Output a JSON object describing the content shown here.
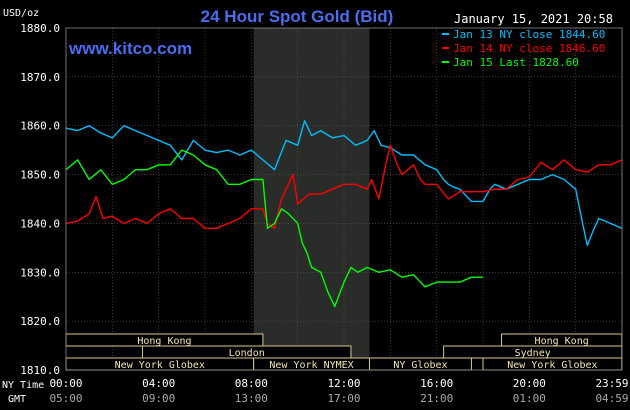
{
  "chart_data": {
    "type": "line",
    "title": "24 Hour Spot Gold (Bid)",
    "website": "www.kitco.com",
    "timestamp": "January 15, 2021 20:58",
    "unit_label": "USD/oz",
    "ylim": [
      1810,
      1880
    ],
    "y_ticks": [
      "1880.0",
      "1870.0",
      "1860.0",
      "1850.0",
      "1840.0",
      "1830.0",
      "1820.0",
      "1810.0"
    ],
    "x_time_labels": [
      "00:00",
      "04:00",
      "08:00",
      "12:00",
      "16:00",
      "20:00",
      "23:59"
    ],
    "gmt_time_labels": [
      "05:00",
      "09:00",
      "13:00",
      "17:00",
      "21:00",
      "01:00",
      "04:59"
    ],
    "ny_time_label": "NY Time",
    "gmt_label": "GMT",
    "shade_hours": [
      8.1,
      13.1
    ],
    "colors": {
      "background": "#000000",
      "title": "#4a6cf0",
      "jan13": "#00bfff",
      "jan14": "#ff0000",
      "jan15": "#00ff00",
      "grid": "#5a5a5a",
      "shade": "#2a2c2a"
    },
    "legend": [
      {
        "label": "Jan 13 NY close 1844.60",
        "color": "#00bfff"
      },
      {
        "label": "Jan 14 NY close 1846.60",
        "color": "#ff0000"
      },
      {
        "label": "Jan 15 Last 1828.60",
        "color": "#00ff00"
      }
    ],
    "sessions": [
      {
        "label": "Hong Kong",
        "row": 0,
        "start": 0,
        "end": 8.5
      },
      {
        "label": "Hong Kong",
        "row": 0,
        "start": 18.8,
        "end": 23.99
      },
      {
        "label": "London",
        "row": 1,
        "start": 3.3,
        "end": 12.3
      },
      {
        "label": "Sydney",
        "row": 1,
        "start": 16.3,
        "end": 23.99
      },
      {
        "label": "New York Globex",
        "row": 2,
        "start": 0,
        "end": 8.1
      },
      {
        "label": "New York NYMEX",
        "row": 2,
        "start": 8.1,
        "end": 13.1
      },
      {
        "label": "NY Globex",
        "row": 2,
        "start": 13.1,
        "end": 17.5
      },
      {
        "label": "New York Globex",
        "row": 2,
        "start": 18.0,
        "end": 23.99
      }
    ],
    "series": [
      {
        "name": "Jan 13 NY close 1844.60",
        "color": "#00bfff",
        "points": [
          [
            0,
            1859.5
          ],
          [
            0.5,
            1859
          ],
          [
            1,
            1860
          ],
          [
            1.5,
            1858.5
          ],
          [
            2,
            1857.5
          ],
          [
            2.5,
            1860
          ],
          [
            3,
            1859
          ],
          [
            3.5,
            1858
          ],
          [
            4,
            1857
          ],
          [
            4.5,
            1856
          ],
          [
            5,
            1853
          ],
          [
            5.5,
            1857
          ],
          [
            6,
            1855
          ],
          [
            6.5,
            1854.5
          ],
          [
            7,
            1855
          ],
          [
            7.5,
            1854
          ],
          [
            8,
            1855
          ],
          [
            8.5,
            1853
          ],
          [
            9,
            1851
          ],
          [
            9.5,
            1857
          ],
          [
            10,
            1856
          ],
          [
            10.3,
            1861
          ],
          [
            10.6,
            1858
          ],
          [
            11,
            1859
          ],
          [
            11.5,
            1857.5
          ],
          [
            12,
            1858
          ],
          [
            12.5,
            1856
          ],
          [
            13,
            1857
          ],
          [
            13.3,
            1859
          ],
          [
            13.6,
            1856
          ],
          [
            14,
            1855.5
          ],
          [
            14.5,
            1854
          ],
          [
            15,
            1854
          ],
          [
            15.5,
            1852
          ],
          [
            16,
            1851
          ],
          [
            16.3,
            1849
          ],
          [
            16.5,
            1848
          ],
          [
            16.7,
            1847.5
          ],
          [
            17,
            1847
          ],
          [
            17.5,
            1844.5
          ],
          [
            18,
            1844.5
          ],
          [
            18.3,
            1847
          ],
          [
            18.5,
            1848
          ],
          [
            19,
            1847
          ],
          [
            19.5,
            1848
          ],
          [
            20,
            1849
          ],
          [
            20.5,
            1849
          ],
          [
            21,
            1850
          ],
          [
            21.5,
            1849
          ],
          [
            22,
            1847
          ],
          [
            22.3,
            1840
          ],
          [
            22.5,
            1835.5
          ],
          [
            22.8,
            1839
          ],
          [
            23,
            1841
          ],
          [
            23.5,
            1840
          ],
          [
            23.99,
            1839
          ]
        ]
      },
      {
        "name": "Jan 14 NY close 1846.60",
        "color": "#ff0000",
        "points": [
          [
            0,
            1840
          ],
          [
            0.5,
            1840.5
          ],
          [
            1,
            1842
          ],
          [
            1.3,
            1845.5
          ],
          [
            1.6,
            1841
          ],
          [
            2,
            1841.5
          ],
          [
            2.5,
            1840
          ],
          [
            3,
            1841
          ],
          [
            3.5,
            1840
          ],
          [
            4,
            1842
          ],
          [
            4.5,
            1843
          ],
          [
            5,
            1841
          ],
          [
            5.5,
            1841
          ],
          [
            6,
            1839
          ],
          [
            6.5,
            1839
          ],
          [
            7,
            1840
          ],
          [
            7.5,
            1841
          ],
          [
            8,
            1843
          ],
          [
            8.5,
            1843
          ],
          [
            8.7,
            1840
          ],
          [
            9,
            1839
          ],
          [
            9.3,
            1845
          ],
          [
            9.6,
            1848
          ],
          [
            9.8,
            1850
          ],
          [
            10,
            1844
          ],
          [
            10.5,
            1846
          ],
          [
            11,
            1846
          ],
          [
            11.5,
            1847
          ],
          [
            12,
            1848
          ],
          [
            12.5,
            1848
          ],
          [
            13,
            1847
          ],
          [
            13.2,
            1849
          ],
          [
            13.5,
            1845
          ],
          [
            13.8,
            1852
          ],
          [
            14,
            1856
          ],
          [
            14.3,
            1852
          ],
          [
            14.5,
            1850
          ],
          [
            15,
            1852
          ],
          [
            15.3,
            1849
          ],
          [
            15.5,
            1848
          ],
          [
            16,
            1848
          ],
          [
            16.5,
            1845
          ],
          [
            17,
            1846.5
          ],
          [
            17.5,
            1846.5
          ],
          [
            18,
            1846.5
          ],
          [
            18.5,
            1847
          ],
          [
            19,
            1847
          ],
          [
            19.5,
            1849
          ],
          [
            20,
            1849.5
          ],
          [
            20.5,
            1852.5
          ],
          [
            21,
            1851
          ],
          [
            21.5,
            1853
          ],
          [
            22,
            1851
          ],
          [
            22.5,
            1850.5
          ],
          [
            23,
            1852
          ],
          [
            23.5,
            1852
          ],
          [
            23.99,
            1853
          ]
        ]
      },
      {
        "name": "Jan 15 Last 1828.60",
        "color": "#00ff00",
        "points": [
          [
            0,
            1851
          ],
          [
            0.5,
            1853
          ],
          [
            1,
            1849
          ],
          [
            1.5,
            1851
          ],
          [
            2,
            1848
          ],
          [
            2.5,
            1849
          ],
          [
            3,
            1851
          ],
          [
            3.5,
            1851
          ],
          [
            4,
            1852
          ],
          [
            4.5,
            1852
          ],
          [
            5,
            1855
          ],
          [
            5.5,
            1854
          ],
          [
            6,
            1852
          ],
          [
            6.5,
            1851
          ],
          [
            7,
            1848
          ],
          [
            7.5,
            1848
          ],
          [
            8,
            1849
          ],
          [
            8.5,
            1849
          ],
          [
            8.7,
            1839
          ],
          [
            9,
            1840
          ],
          [
            9.3,
            1843
          ],
          [
            9.6,
            1842
          ],
          [
            10,
            1840
          ],
          [
            10.2,
            1836
          ],
          [
            10.4,
            1834
          ],
          [
            10.6,
            1831
          ],
          [
            11,
            1830
          ],
          [
            11.3,
            1826
          ],
          [
            11.6,
            1823
          ],
          [
            12,
            1828
          ],
          [
            12.3,
            1831
          ],
          [
            12.6,
            1830
          ],
          [
            13,
            1831
          ],
          [
            13.5,
            1830
          ],
          [
            14,
            1830.5
          ],
          [
            14.5,
            1829
          ],
          [
            15,
            1829.5
          ],
          [
            15.5,
            1827
          ],
          [
            16,
            1828
          ],
          [
            16.5,
            1828
          ],
          [
            17,
            1828
          ],
          [
            17.5,
            1829
          ],
          [
            18,
            1829
          ]
        ]
      }
    ]
  }
}
